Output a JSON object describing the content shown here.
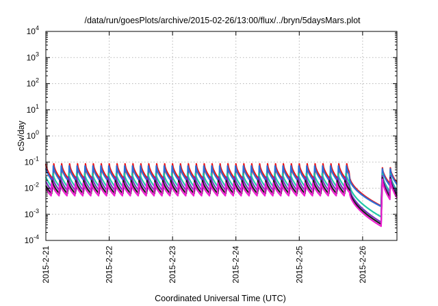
{
  "chart_data": {
    "type": "line",
    "title": "/data/run/goesPlots/archive/2015-02-26/13:00/flux/../bryn/5daysMars.plot",
    "xlabel": "Coordinated Universal Time (UTC)",
    "ylabel": "cSv/day",
    "yscale": "log",
    "ylim": [
      0.0001,
      10000
    ],
    "xlim": [
      "2015-02-21T00:00",
      "2015-02-26T13:00"
    ],
    "grid": true,
    "x_ticks": [
      {
        "label": "2015-2-21",
        "t": "2015-02-21T00:00"
      },
      {
        "label": "2015-2-22",
        "t": "2015-02-22T00:00"
      },
      {
        "label": "2015-2-23",
        "t": "2015-02-23T00:00"
      },
      {
        "label": "2015-2-24",
        "t": "2015-02-24T00:00"
      },
      {
        "label": "2015-2-25",
        "t": "2015-02-25T00:00"
      },
      {
        "label": "2015-2-26",
        "t": "2015-02-26T00:00"
      }
    ],
    "y_ticks": [
      {
        "base": "10",
        "exp": "-4",
        "value": 0.0001
      },
      {
        "base": "10",
        "exp": "-3",
        "value": 0.001
      },
      {
        "base": "10",
        "exp": "-2",
        "value": 0.01
      },
      {
        "base": "10",
        "exp": "-1",
        "value": 0.1
      },
      {
        "base": "10",
        "exp": "0",
        "value": 1
      },
      {
        "base": "10",
        "exp": "1",
        "value": 10
      },
      {
        "base": "10",
        "exp": "2",
        "value": 100
      },
      {
        "base": "10",
        "exp": "3",
        "value": 1000
      },
      {
        "base": "10",
        "exp": "4",
        "value": 10000
      }
    ],
    "sawtooth_period_hours": 3,
    "series": [
      {
        "color": "#e8151b",
        "peak": 0.085,
        "trough": 0.02,
        "dip_end": 0.0021,
        "dip_recover_peak": 0.06
      },
      {
        "color": "#2c6fd6",
        "peak": 0.075,
        "trough": 0.017,
        "dip_end": 0.002,
        "dip_recover_peak": 0.055
      },
      {
        "color": "#21c7a8",
        "peak": 0.04,
        "trough": 0.01,
        "dip_end": 0.0008,
        "dip_recover_peak": 0.035
      },
      {
        "color": "#7b2fbf",
        "peak": 0.03,
        "trough": 0.0075,
        "dip_end": 0.0005,
        "dip_recover_peak": 0.03
      },
      {
        "color": "#1a1a1a",
        "peak": 0.022,
        "trough": 0.006,
        "dip_end": 0.00042,
        "dip_recover_peak": 0.025
      },
      {
        "color": "#ee1fd0",
        "peak": 0.018,
        "trough": 0.005,
        "dip_end": 0.00035,
        "dip_recover_peak": 0.022
      }
    ],
    "dip_start": "2015-02-25T19:00",
    "dip_end_time": "2015-02-26T07:00",
    "recover_time": "2015-02-26T07:30"
  }
}
